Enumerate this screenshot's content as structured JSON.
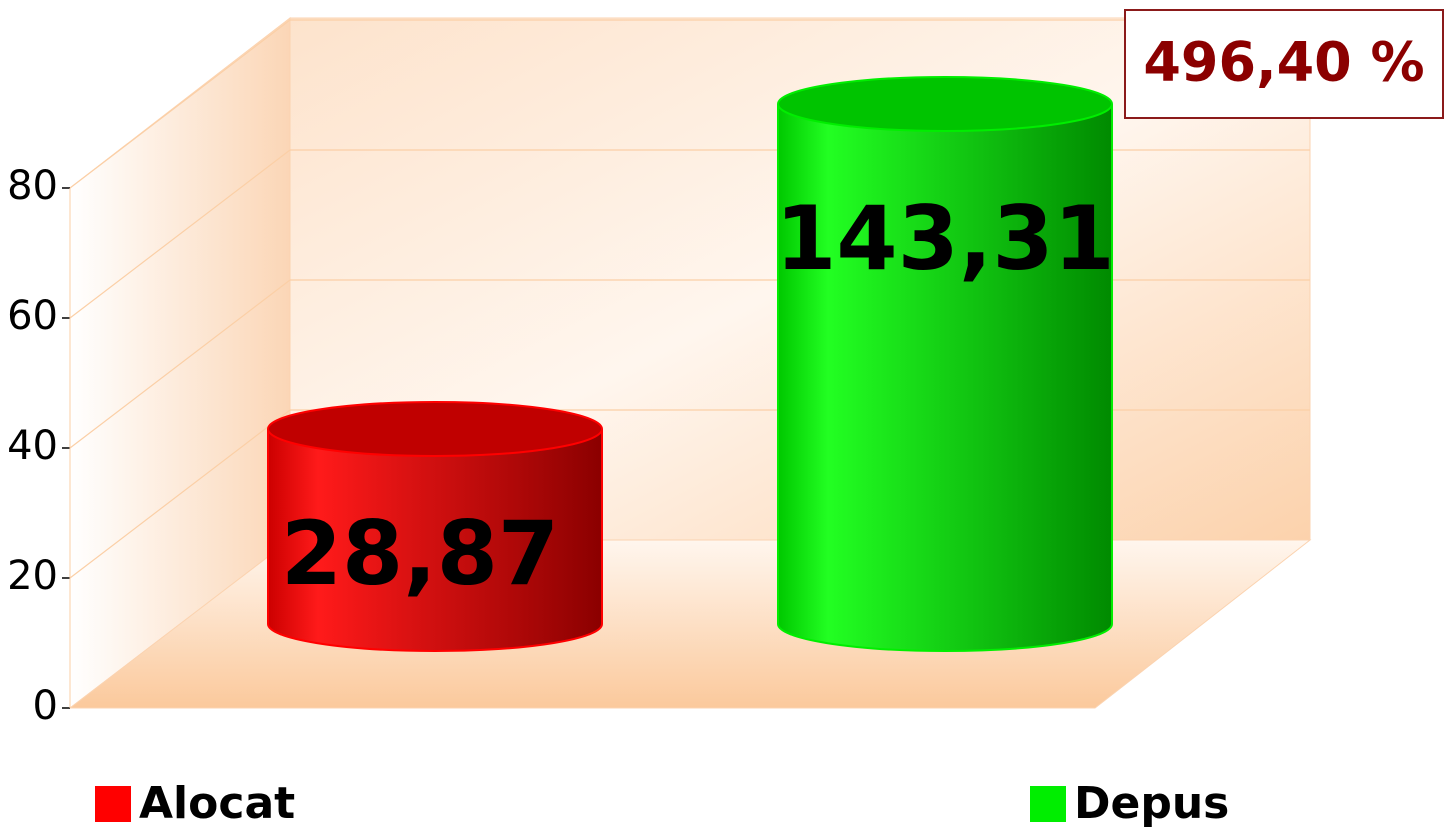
{
  "chart_data": {
    "type": "cylinder",
    "categories": [
      "Alocat",
      "Depus"
    ],
    "series": [
      {
        "name": "Alocat",
        "color": "#ff0000",
        "values": [
          30,
          null
        ]
      },
      {
        "name": "Depus",
        "color": "#00ee00",
        "values": [
          null,
          80
        ]
      }
    ],
    "annotations": [
      "28,87",
      "143,31",
      "496,40 %"
    ],
    "ylim": [
      0,
      80
    ],
    "yticks": [
      0,
      20,
      40,
      60,
      80
    ],
    "grid": true,
    "legend": "bottom"
  }
}
